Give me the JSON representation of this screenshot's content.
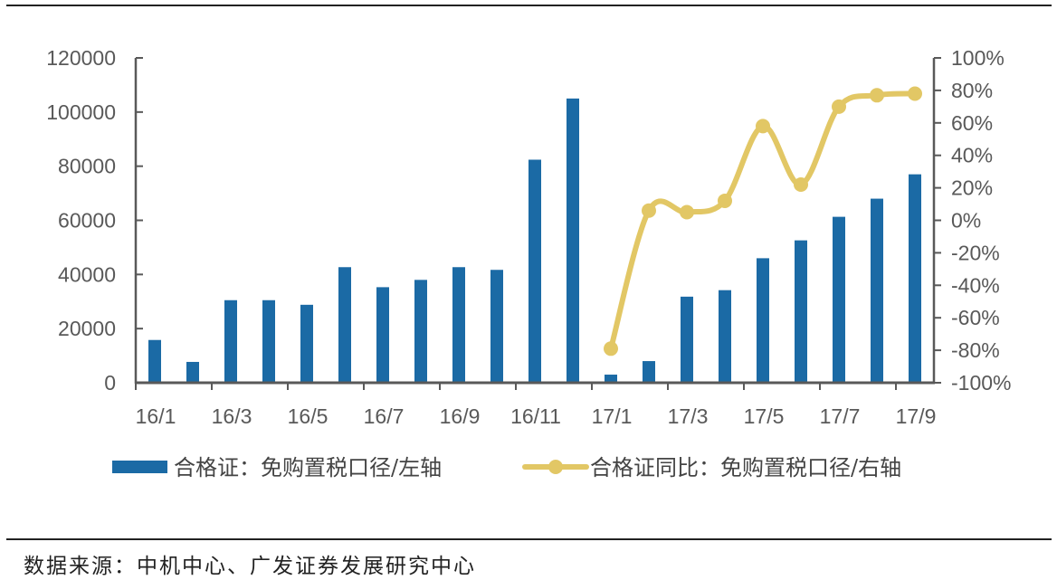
{
  "chart_data": {
    "type": "bar+line",
    "title": "",
    "categories": [
      "16/1",
      "16/2",
      "16/3",
      "16/4",
      "16/5",
      "16/6",
      "16/7",
      "16/8",
      "16/9",
      "16/10",
      "16/11",
      "16/12",
      "17/1",
      "17/2",
      "17/3",
      "17/4",
      "17/5",
      "17/6",
      "17/7",
      "17/8",
      "17/9"
    ],
    "x_tick_labels": [
      "16/1",
      "16/3",
      "16/5",
      "16/7",
      "16/9",
      "16/11",
      "17/1",
      "17/3",
      "17/5",
      "17/7",
      "17/9"
    ],
    "series": [
      {
        "name": "合格证：免购置税口径/左轴",
        "type": "bar",
        "axis": "left",
        "color": "#1b6aa5",
        "values": [
          15800,
          7700,
          30500,
          30500,
          28800,
          42700,
          35300,
          38000,
          42700,
          41700,
          82400,
          105000,
          3000,
          8000,
          31800,
          34200,
          46000,
          52600,
          61300,
          68000,
          77000
        ]
      },
      {
        "name": "合格证同比：免购置税口径/右轴",
        "type": "line",
        "axis": "right",
        "color": "#e2c765",
        "values": [
          null,
          null,
          null,
          null,
          null,
          null,
          null,
          null,
          null,
          null,
          null,
          null,
          -79,
          6,
          5,
          12,
          58,
          22,
          70,
          77,
          78
        ]
      }
    ],
    "left_axis": {
      "ylim": [
        0,
        120000
      ],
      "ticks": [
        "0",
        "20000",
        "40000",
        "60000",
        "80000",
        "100000",
        "120000"
      ]
    },
    "right_axis": {
      "ylim": [
        -100,
        100
      ],
      "ticks": [
        "-100%",
        "-80%",
        "-60%",
        "-40%",
        "-20%",
        "0%",
        "20%",
        "40%",
        "60%",
        "80%",
        "100%"
      ]
    },
    "xlabel": "",
    "ylabel": "",
    "grid": false,
    "legend_position": "bottom"
  },
  "legend": {
    "bar_label": "合格证：免购置税口径/左轴",
    "line_label": "合格证同比：免购置税口径/右轴"
  },
  "source": "数据来源：中机中心、广发证券发展研究中心"
}
